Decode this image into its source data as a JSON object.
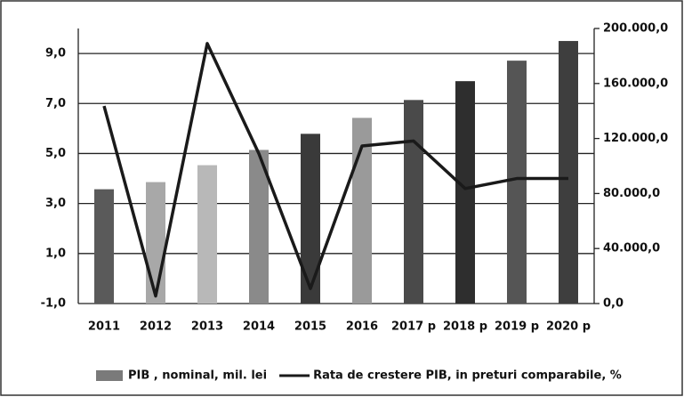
{
  "chart_data": {
    "type": "bar-line",
    "categories": [
      "2011",
      "2012",
      "2013",
      "2014",
      "2015",
      "2016",
      "2017 p",
      "2018 p",
      "2019 p",
      "2020 p"
    ],
    "series": [
      {
        "name": "PIB , nominal, mil. lei",
        "type": "bar",
        "axis": "y2",
        "color": "#7a7a7a",
        "colors": [
          "#5a5a5a",
          "#a8a8a8",
          "#b8b8b8",
          "#8a8a8a",
          "#3a3a3a",
          "#9a9a9a",
          "#4a4a4a",
          "#2e2e2e",
          "#555555",
          "#3e3e3e"
        ],
        "values": [
          83100,
          88300,
          100600,
          111700,
          123400,
          135000,
          148000,
          161700,
          176600,
          190900
        ]
      },
      {
        "name": "Rata de crestere PIB, in preturi comparabile, %",
        "type": "line",
        "axis": "y",
        "color": "#1a1a1a",
        "values": [
          6.9,
          -0.7,
          9.4,
          5.0,
          -0.4,
          5.3,
          5.5,
          3.6,
          4.0,
          4.0
        ]
      }
    ],
    "ylim": [
      -1,
      10
    ],
    "yticks": [
      {
        "value": -1,
        "label": "-1,0"
      },
      {
        "value": 1,
        "label": "1,0"
      },
      {
        "value": 3,
        "label": "3,0"
      },
      {
        "value": 5,
        "label": "5,0"
      },
      {
        "value": 7,
        "label": "7,0"
      },
      {
        "value": 9,
        "label": "9,0"
      }
    ],
    "y2lim": [
      0,
      200000
    ],
    "y2ticks": [
      {
        "value": 0,
        "label": "0,0"
      },
      {
        "value": 40000,
        "label": "40.000,0"
      },
      {
        "value": 80000,
        "label": "80.000,0"
      },
      {
        "value": 120000,
        "label": "120.000,0"
      },
      {
        "value": 160000,
        "label": "160.000,0"
      },
      {
        "value": 200000,
        "label": "200.000,0"
      }
    ],
    "grid": true,
    "legend": "bottom"
  }
}
